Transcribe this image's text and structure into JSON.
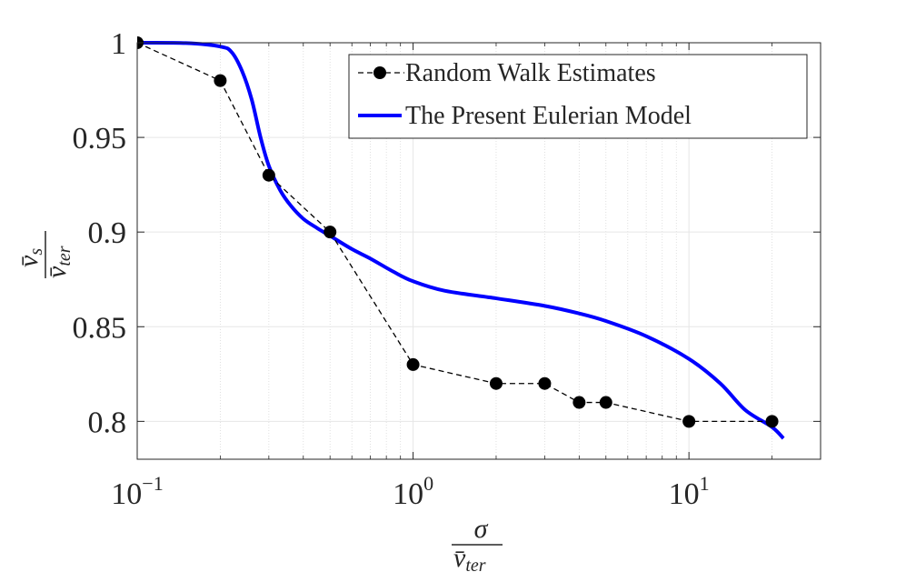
{
  "chart_data": {
    "type": "line",
    "xscale": "log",
    "xlim": [
      0.1,
      30
    ],
    "ylim": [
      0.78,
      1.0
    ],
    "grid": true,
    "legend_position": "top-right",
    "xlabel": {
      "numerator": "σ",
      "denominator": "v̄",
      "denominator_sub": "ter"
    },
    "ylabel": {
      "numerator": "v̄",
      "numerator_sub": "s",
      "denominator": "v̄",
      "denominator_sub": "ter"
    },
    "x_ticks": [
      {
        "value": 0.1,
        "base": "10",
        "exp": "−1"
      },
      {
        "value": 1,
        "base": "10",
        "exp": "0"
      },
      {
        "value": 10,
        "base": "10",
        "exp": "1"
      }
    ],
    "y_ticks": [
      {
        "value": 0.8,
        "label": "0.8"
      },
      {
        "value": 0.85,
        "label": "0.85"
      },
      {
        "value": 0.9,
        "label": "0.9"
      },
      {
        "value": 0.95,
        "label": "0.95"
      },
      {
        "value": 1.0,
        "label": "1"
      }
    ],
    "series": [
      {
        "name": "Random Walk Estimates",
        "style": "dashed-markers",
        "color": "#000000",
        "x": [
          0.1,
          0.2,
          0.3,
          0.5,
          1,
          2,
          3,
          4,
          5,
          10,
          20
        ],
        "y": [
          1.0,
          0.98,
          0.93,
          0.9,
          0.83,
          0.82,
          0.82,
          0.81,
          0.81,
          0.8,
          0.8
        ]
      },
      {
        "name": "The Present Eulerian Model",
        "style": "solid",
        "color": "#0000ff",
        "x": [
          0.1,
          0.15,
          0.2,
          0.22,
          0.24,
          0.26,
          0.28,
          0.3,
          0.33,
          0.36,
          0.4,
          0.45,
          0.5,
          0.6,
          0.7,
          0.85,
          1.0,
          1.3,
          2.0,
          3.0,
          4.0,
          5.0,
          7.0,
          10.0,
          13.0,
          16.0,
          20.0,
          22.0
        ],
        "y": [
          1.0,
          0.9998,
          0.998,
          0.995,
          0.985,
          0.97,
          0.95,
          0.935,
          0.922,
          0.914,
          0.907,
          0.902,
          0.898,
          0.891,
          0.886,
          0.879,
          0.874,
          0.869,
          0.865,
          0.861,
          0.857,
          0.853,
          0.845,
          0.833,
          0.82,
          0.806,
          0.797,
          0.791
        ]
      }
    ]
  }
}
